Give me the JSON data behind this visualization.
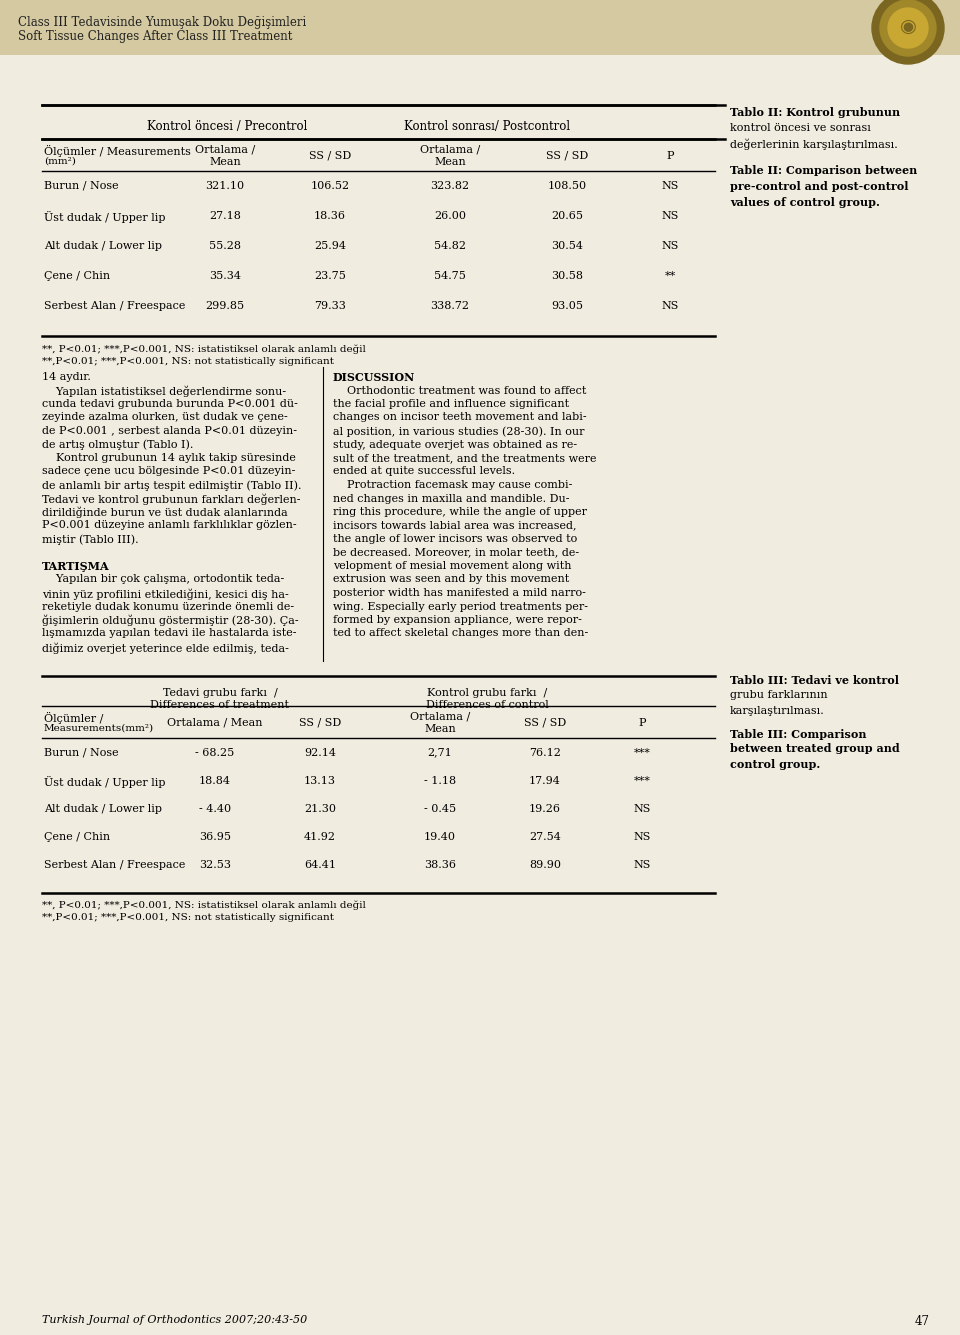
{
  "header_bg": "#d4c9a0",
  "header_text_line1": "Class III Tedavisinde Yumuşak Doku Değişimleri",
  "header_text_line2": "Soft Tissue Changes After Class III Treatment",
  "page_bg": "#f0ece0",
  "table2_title_tr": "Tablo II: Kontrol grubunun\nkontrol öncesi ve sonrası\ndeğerlerinin karşılaştırılması.",
  "table2_title_en": "Table II: Comparison between\npre-control and post-control\nvalues of control group.",
  "table2_rows": [
    [
      "Burun / Nose",
      "321.10",
      "106.52",
      "323.82",
      "108.50",
      "NS"
    ],
    [
      "Üst dudak / Upper lip",
      "27.18",
      "18.36",
      "26.00",
      "20.65",
      "NS"
    ],
    [
      "Alt dudak / Lower lip",
      "55.28",
      "25.94",
      "54.82",
      "30.54",
      "NS"
    ],
    [
      "Çene / Chin",
      "35.34",
      "23.75",
      "54.75",
      "30.58",
      "**"
    ],
    [
      "Serbest Alan / Freespace",
      "299.85",
      "79.33",
      "338.72",
      "93.05",
      "NS"
    ]
  ],
  "table2_footnote_tr": "**, P<0.01; ***,P<0.001, NS: istatistiksel olarak anlamlı değil",
  "table2_footnote_en": "**,P<0.01; ***,P<0.001, NS: not statistically significant",
  "table3_title_tr": "Tablo III: Tedavi ve kontrol\ngrubu farklarının\nkarşılaştırılması.",
  "table3_title_en": "Table III: Comparison\nbetween treated group and\ncontrol group.",
  "table3_rows": [
    [
      "Burun / Nose",
      "- 68.25",
      "92.14",
      "2,71",
      "76.12",
      "***"
    ],
    [
      "Üst dudak / Upper lip",
      "18.84",
      "13.13",
      "- 1.18",
      "17.94",
      "***"
    ],
    [
      "Alt dudak / Lower lip",
      "- 4.40",
      "21.30",
      "- 0.45",
      "19.26",
      "NS"
    ],
    [
      "Çene / Chin",
      "36.95",
      "41.92",
      "19.40",
      "27.54",
      "NS"
    ],
    [
      "Serbest Alan / Freespace",
      "32.53",
      "64.41",
      "38.36",
      "89.90",
      "NS"
    ]
  ],
  "table3_footnote_tr": "**, P<0.01; ***,P<0.001, NS: istatistiksel olarak anlamlı değil",
  "table3_footnote_en": "**,P<0.01; ***,P<0.001, NS: not statistically significant",
  "footer_text": "Turkish Journal of Orthodontics 2007;20:43-50",
  "page_number": "47",
  "left_col_lines": [
    "14 aydır.",
    "    Yapılan istatistiksel değerlendirme sonu-",
    "cunda tedavi grubunda burunda P<0.001 dü-",
    "zeyinde azalma olurken, üst dudak ve çene-",
    "de P<0.001 , serbest alanda P<0.01 düzeyin-",
    "de artış olmuştur (Tablo I).",
    "    Kontrol grubunun 14 aylık takip süresinde",
    "sadece çene ucu bölgesinde P<0.01 düzeyin-",
    "de anlamlı bir artış tespit edilmiştir (Tablo II).",
    "Tedavi ve kontrol grubunun farkları değerlen-",
    "dirildiğinde burun ve üst dudak alanlarında",
    "P<0.001 düzeyine anlamlı farklılıklar gözlen-",
    "miştir (Tablo III).",
    "",
    "TARTIŞMA",
    "    Yapılan bir çok çalışma, ortodontik teda-",
    "vinin yüz profilini etkilediğini, kesici diş ha-",
    "reketiyle dudak konumu üzerinde önemli de-",
    "ğişimlerin olduğunu göstermiştir (28-30). Ça-",
    "lışmamızda yapılan tedavi ile hastalarda iste-",
    "diğimiz overjet yeterince elde edilmiş, teda-"
  ],
  "left_col_bold": [
    14,
    false,
    false,
    false,
    false,
    false,
    false,
    false,
    false,
    false,
    false,
    false,
    false,
    false,
    true,
    false,
    false,
    false,
    false,
    false,
    false
  ],
  "right_col_lines": [
    "DISCUSSION",
    "    Orthodontic treatment was found to affect",
    "the facial profile and influence significant",
    "changes on incisor teeth movement and labi-",
    "al position, in various studies (28-30). In our",
    "study, adequate overjet was obtained as re-",
    "sult of the treatment, and the treatments were",
    "ended at quite successful levels.",
    "    Protraction facemask may cause combi-",
    "ned changes in maxilla and mandible. Du-",
    "ring this procedure, while the angle of upper",
    "incisors towards labial area was increased,",
    "the angle of lower incisors was observed to",
    "be decreased. Moreover, in molar teeth, de-",
    "velopment of mesial movement along with",
    "extrusion was seen and by this movement",
    "posterior width has manifested a mild narro-",
    "wing. Especially early period treatments per-",
    "formed by expansion appliance, were repor-",
    "ted to affect skeletal changes more than den-"
  ],
  "right_col_bold": [
    true,
    false,
    false,
    false,
    false,
    false,
    false,
    false,
    false,
    false,
    false,
    false,
    false,
    false,
    false,
    false,
    false,
    false,
    false,
    false
  ]
}
